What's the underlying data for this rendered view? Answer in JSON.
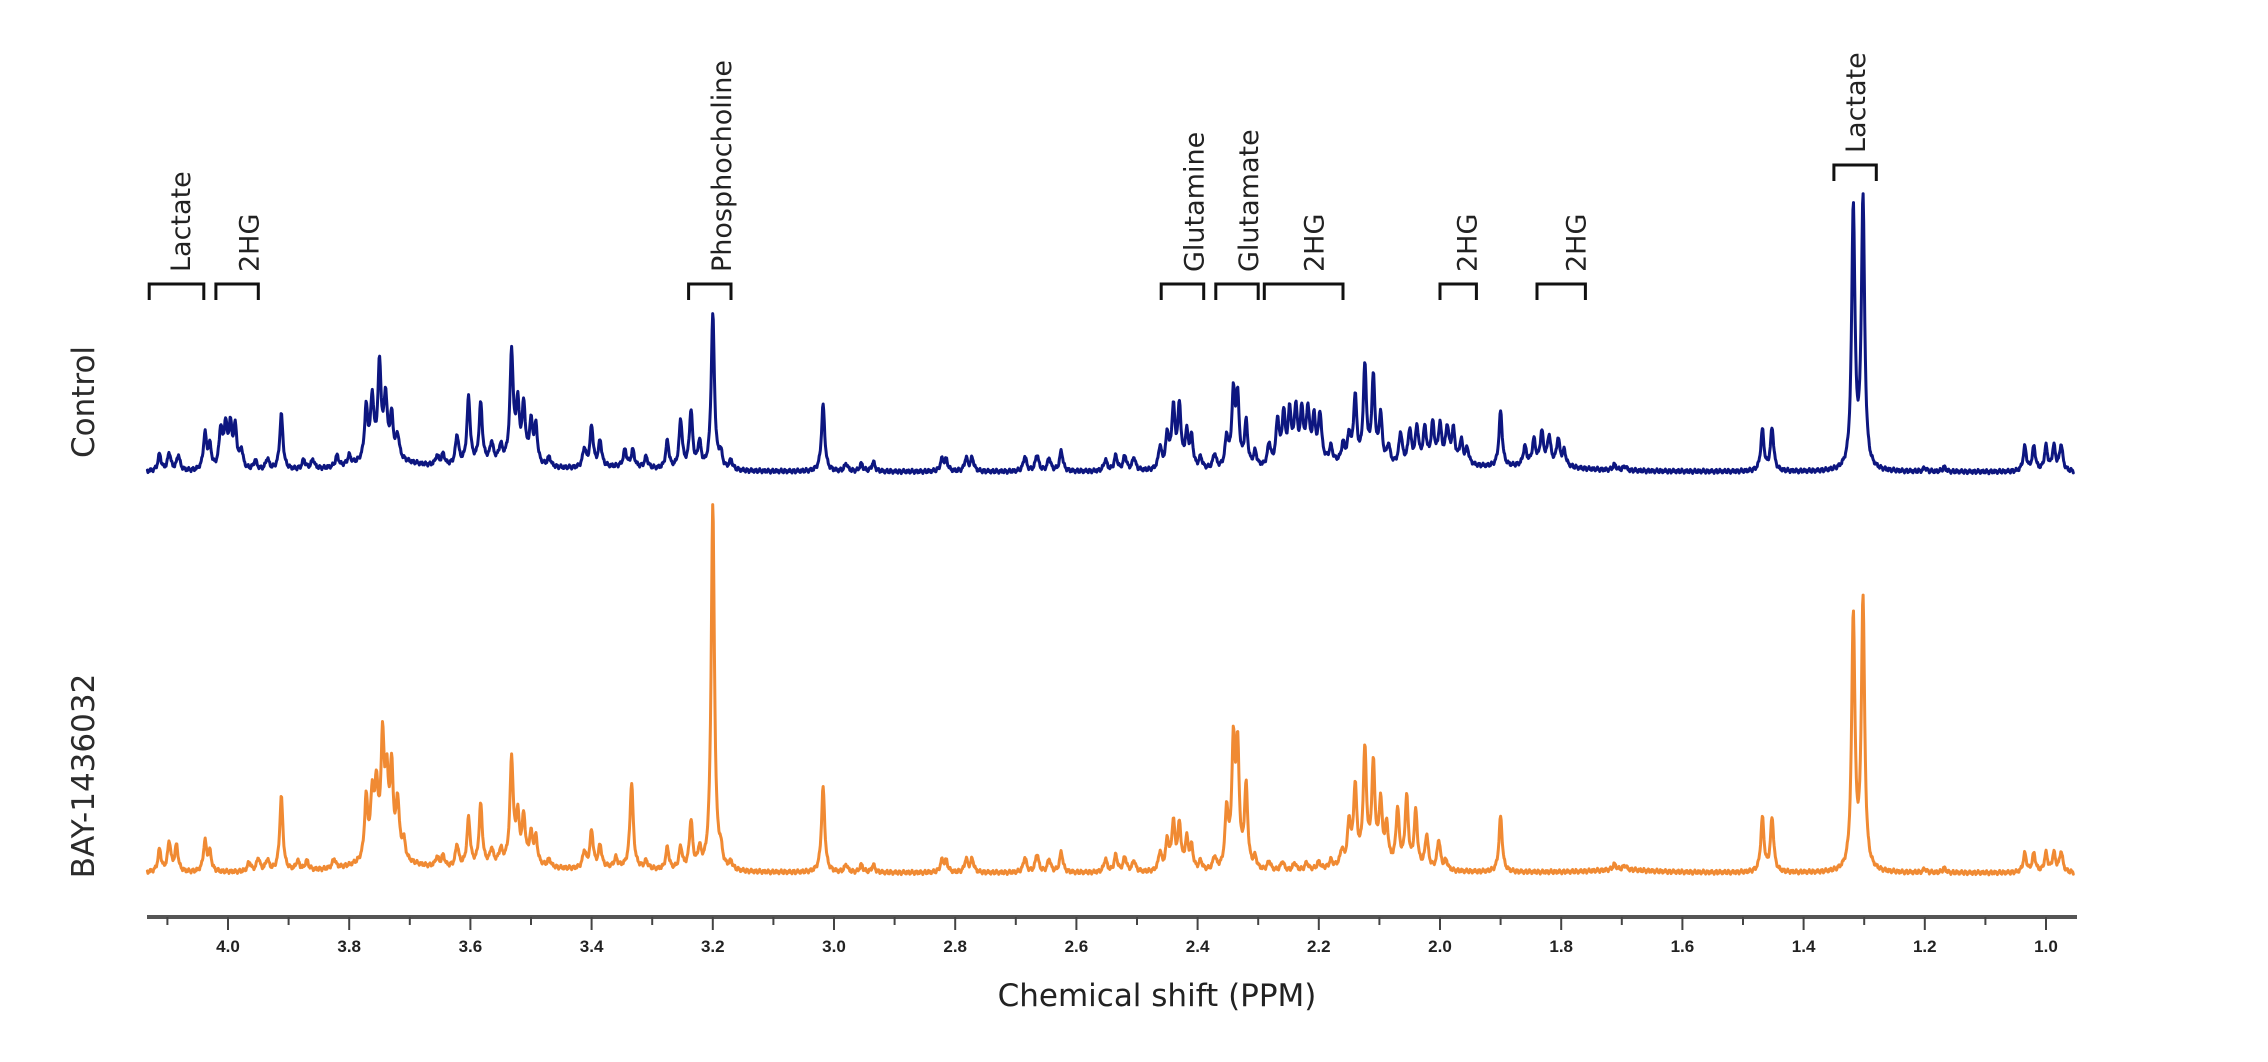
{
  "chart_data": {
    "type": "line",
    "title": "",
    "xlabel": "Chemical shift (PPM)",
    "ylabel": "",
    "xlim": [
      4.133,
      0.955
    ],
    "x_reversed": true,
    "grid": false,
    "x_ticks_major": [
      4.0,
      3.8,
      3.6,
      3.4,
      3.2,
      3.0,
      2.8,
      2.6,
      2.4,
      2.2,
      2.0,
      1.8,
      1.6,
      1.4,
      1.2,
      1.0
    ],
    "x_tick_labels": [
      "4.0",
      "3.8",
      "3.6",
      "3.4",
      "3.2",
      "3.0",
      "2.8",
      "2.6",
      "2.4",
      "2.2",
      "2.0",
      "1.8",
      "1.6",
      "1.4",
      "1.2",
      "1.0"
    ],
    "x_ticks_minor": [
      4.1,
      3.9,
      3.7,
      3.5,
      3.3,
      3.1,
      2.9,
      2.7,
      2.5,
      2.3,
      2.1,
      1.9,
      1.7,
      1.5,
      1.3,
      1.1
    ],
    "intensity_units": "a.u. (relative, BAY-1436032 phosphocholine peak ≈ 100)",
    "series": [
      {
        "name": "Control",
        "color": "#0d1680",
        "peaks_ppm_height": [
          [
            4.113,
            4.5
          ],
          [
            4.097,
            4.8
          ],
          [
            4.082,
            4.2
          ],
          [
            4.038,
            9.5
          ],
          [
            4.03,
            6
          ],
          [
            4.012,
            10.5
          ],
          [
            4.004,
            11
          ],
          [
            3.996,
            10.8
          ],
          [
            3.988,
            10.6
          ],
          [
            3.978,
            5
          ],
          [
            3.955,
            2.5
          ],
          [
            3.935,
            3
          ],
          [
            3.912,
            15
          ],
          [
            3.875,
            2.5
          ],
          [
            3.86,
            2.5
          ],
          [
            3.82,
            3
          ],
          [
            3.8,
            2.5
          ],
          [
            3.772,
            14
          ],
          [
            3.762,
            16
          ],
          [
            3.75,
            25
          ],
          [
            3.74,
            16
          ],
          [
            3.73,
            11
          ],
          [
            3.72,
            6
          ],
          [
            3.655,
            2.5
          ],
          [
            3.645,
            3
          ],
          [
            3.622,
            8
          ],
          [
            3.603,
            18
          ],
          [
            3.583,
            16
          ],
          [
            3.565,
            5
          ],
          [
            3.55,
            4
          ],
          [
            3.532,
            29.5
          ],
          [
            3.522,
            15
          ],
          [
            3.512,
            15
          ],
          [
            3.5,
            10.5
          ],
          [
            3.492,
            10
          ],
          [
            3.47,
            2.5
          ],
          [
            3.412,
            5
          ],
          [
            3.4,
            11
          ],
          [
            3.386,
            7
          ],
          [
            3.345,
            4.5
          ],
          [
            3.332,
            4.5
          ],
          [
            3.31,
            3
          ],
          [
            3.275,
            7.5
          ],
          [
            3.253,
            13
          ],
          [
            3.236,
            15.5
          ],
          [
            3.222,
            7
          ],
          [
            3.2,
            42
          ],
          [
            3.187,
            4
          ],
          [
            3.17,
            2.5
          ],
          [
            3.018,
            18
          ],
          [
            2.98,
            2
          ],
          [
            2.955,
            2
          ],
          [
            2.935,
            2.5
          ],
          [
            2.822,
            3
          ],
          [
            2.815,
            3
          ],
          [
            2.782,
            3.5
          ],
          [
            2.772,
            3.5
          ],
          [
            2.685,
            4
          ],
          [
            2.665,
            4.5
          ],
          [
            2.645,
            3.5
          ],
          [
            2.625,
            5.5
          ],
          [
            2.552,
            3
          ],
          [
            2.535,
            4
          ],
          [
            2.52,
            4
          ],
          [
            2.505,
            3.5
          ],
          [
            2.462,
            6
          ],
          [
            2.45,
            9
          ],
          [
            2.44,
            16
          ],
          [
            2.43,
            16.5
          ],
          [
            2.418,
            9
          ],
          [
            2.41,
            8
          ],
          [
            2.395,
            3
          ],
          [
            2.372,
            4
          ],
          [
            2.352,
            8
          ],
          [
            2.341,
            19
          ],
          [
            2.334,
            18
          ],
          [
            2.32,
            12
          ],
          [
            2.305,
            4
          ],
          [
            2.282,
            6
          ],
          [
            2.268,
            12
          ],
          [
            2.258,
            13
          ],
          [
            2.248,
            13.5
          ],
          [
            2.238,
            14
          ],
          [
            2.228,
            13
          ],
          [
            2.218,
            13.5
          ],
          [
            2.208,
            11
          ],
          [
            2.198,
            12.5
          ],
          [
            2.18,
            4
          ],
          [
            2.16,
            5
          ],
          [
            2.15,
            7
          ],
          [
            2.14,
            18
          ],
          [
            2.124,
            26
          ],
          [
            2.11,
            23
          ],
          [
            2.098,
            13
          ],
          [
            2.085,
            5
          ],
          [
            2.065,
            8.5
          ],
          [
            2.05,
            9
          ],
          [
            2.038,
            9.5
          ],
          [
            2.025,
            9
          ],
          [
            2.012,
            10
          ],
          [
            2.0,
            9.5
          ],
          [
            1.988,
            9
          ],
          [
            1.978,
            8.5
          ],
          [
            1.965,
            6
          ],
          [
            1.955,
            4
          ],
          [
            1.9,
            15
          ],
          [
            1.86,
            5
          ],
          [
            1.845,
            6.5
          ],
          [
            1.832,
            8.5
          ],
          [
            1.82,
            7.5
          ],
          [
            1.805,
            7
          ],
          [
            1.795,
            4
          ],
          [
            1.712,
            1.5
          ],
          [
            1.695,
            1.2
          ],
          [
            1.468,
            11
          ],
          [
            1.452,
            11.5
          ],
          [
            1.318,
            71
          ],
          [
            1.302,
            73
          ],
          [
            1.2,
            1
          ],
          [
            1.168,
            1.2
          ],
          [
            1.035,
            6.5
          ],
          [
            1.02,
            6.5
          ],
          [
            1.0,
            6.5
          ],
          [
            0.987,
            6.5
          ],
          [
            0.975,
            7
          ]
        ],
        "broad_baseline": [
          [
            3.74,
            3.0
          ],
          [
            3.55,
            2.0
          ],
          [
            3.35,
            1.0
          ],
          [
            2.2,
            2.0
          ],
          [
            2.0,
            2.0
          ],
          [
            1.83,
            1.5
          ]
        ]
      },
      {
        "name": "BAY-1436032",
        "color": "#f08a33",
        "peaks_ppm_height": [
          [
            4.113,
            6
          ],
          [
            4.097,
            8
          ],
          [
            4.085,
            7
          ],
          [
            4.038,
            8
          ],
          [
            4.03,
            5
          ],
          [
            3.965,
            2.5
          ],
          [
            3.95,
            3.5
          ],
          [
            3.935,
            3
          ],
          [
            3.912,
            20
          ],
          [
            3.885,
            2.5
          ],
          [
            3.87,
            2.5
          ],
          [
            3.825,
            2.5
          ],
          [
            3.772,
            16.5
          ],
          [
            3.762,
            16
          ],
          [
            3.755,
            18
          ],
          [
            3.745,
            30.5
          ],
          [
            3.738,
            19
          ],
          [
            3.73,
            23
          ],
          [
            3.72,
            15
          ],
          [
            3.71,
            5
          ],
          [
            3.655,
            2.5
          ],
          [
            3.645,
            3
          ],
          [
            3.622,
            6
          ],
          [
            3.603,
            13
          ],
          [
            3.583,
            16.5
          ],
          [
            3.565,
            4
          ],
          [
            3.55,
            3.5
          ],
          [
            3.532,
            28
          ],
          [
            3.522,
            12
          ],
          [
            3.512,
            12
          ],
          [
            3.5,
            7.5
          ],
          [
            3.492,
            7
          ],
          [
            3.47,
            2
          ],
          [
            3.412,
            4.5
          ],
          [
            3.4,
            10
          ],
          [
            3.386,
            6
          ],
          [
            3.36,
            2.5
          ],
          [
            3.334,
            23
          ],
          [
            3.31,
            2
          ],
          [
            3.275,
            6
          ],
          [
            3.253,
            6
          ],
          [
            3.236,
            13
          ],
          [
            3.222,
            5
          ],
          [
            3.2,
            99
          ],
          [
            3.187,
            4
          ],
          [
            3.17,
            2
          ],
          [
            3.018,
            23
          ],
          [
            2.98,
            2
          ],
          [
            2.955,
            2
          ],
          [
            2.935,
            2
          ],
          [
            2.822,
            3
          ],
          [
            2.815,
            3
          ],
          [
            2.782,
            3.5
          ],
          [
            2.772,
            3.5
          ],
          [
            2.685,
            4
          ],
          [
            2.665,
            5
          ],
          [
            2.645,
            3.5
          ],
          [
            2.625,
            5.5
          ],
          [
            2.552,
            3.5
          ],
          [
            2.535,
            4.5
          ],
          [
            2.52,
            4
          ],
          [
            2.505,
            3
          ],
          [
            2.462,
            5
          ],
          [
            2.45,
            8
          ],
          [
            2.44,
            12.5
          ],
          [
            2.43,
            12
          ],
          [
            2.418,
            8
          ],
          [
            2.41,
            6
          ],
          [
            2.395,
            2.5
          ],
          [
            2.372,
            3.5
          ],
          [
            2.352,
            15.5
          ],
          [
            2.341,
            32
          ],
          [
            2.334,
            31
          ],
          [
            2.32,
            22
          ],
          [
            2.305,
            3
          ],
          [
            2.282,
            2.5
          ],
          [
            2.26,
            2.5
          ],
          [
            2.24,
            2
          ],
          [
            2.22,
            2
          ],
          [
            2.2,
            2
          ],
          [
            2.18,
            2
          ],
          [
            2.162,
            4
          ],
          [
            2.15,
            11
          ],
          [
            2.14,
            20.5
          ],
          [
            2.124,
            30
          ],
          [
            2.11,
            26
          ],
          [
            2.098,
            16
          ],
          [
            2.088,
            10
          ],
          [
            2.07,
            15
          ],
          [
            2.055,
            18.5
          ],
          [
            2.04,
            15
          ],
          [
            2.022,
            9
          ],
          [
            2.002,
            8
          ],
          [
            1.99,
            2.5
          ],
          [
            1.9,
            15
          ],
          [
            1.712,
            1.5
          ],
          [
            1.695,
            1.2
          ],
          [
            1.468,
            14.5
          ],
          [
            1.452,
            14.5
          ],
          [
            1.318,
            69
          ],
          [
            1.302,
            73
          ],
          [
            1.2,
            1
          ],
          [
            1.168,
            1.2
          ],
          [
            1.035,
            5
          ],
          [
            1.02,
            5
          ],
          [
            1.0,
            5
          ],
          [
            0.987,
            5
          ],
          [
            0.975,
            5.5
          ]
        ],
        "broad_baseline": [
          [
            3.74,
            3.0
          ],
          [
            3.53,
            2.0
          ],
          [
            3.35,
            1.0
          ],
          [
            2.12,
            2.0
          ],
          [
            1.7,
            0.8
          ]
        ]
      }
    ],
    "series_labels": [
      "Control",
      "BAY-1436032"
    ],
    "annotations": [
      {
        "label": "Lactate",
        "ppm_range": [
          4.13,
          4.04
        ],
        "over": "Control"
      },
      {
        "label": "2HG",
        "ppm_range": [
          4.02,
          3.95
        ],
        "over": "Control"
      },
      {
        "label": "Phosphocholine",
        "ppm_range": [
          3.24,
          3.17
        ],
        "over": "Control"
      },
      {
        "label": "Glutamine",
        "ppm_range": [
          2.46,
          2.39
        ],
        "over": "Control"
      },
      {
        "label": "Glutamate",
        "ppm_range": [
          2.37,
          2.3
        ],
        "over": "Control"
      },
      {
        "label": "2HG",
        "ppm_range": [
          2.29,
          2.16
        ],
        "over": "Control"
      },
      {
        "label": "2HG",
        "ppm_range": [
          2.0,
          1.94
        ],
        "over": "Control"
      },
      {
        "label": "2HG",
        "ppm_range": [
          1.84,
          1.76
        ],
        "over": "Control"
      },
      {
        "label": "Lactate",
        "ppm_range": [
          1.35,
          1.28
        ],
        "over": "Control"
      }
    ]
  }
}
